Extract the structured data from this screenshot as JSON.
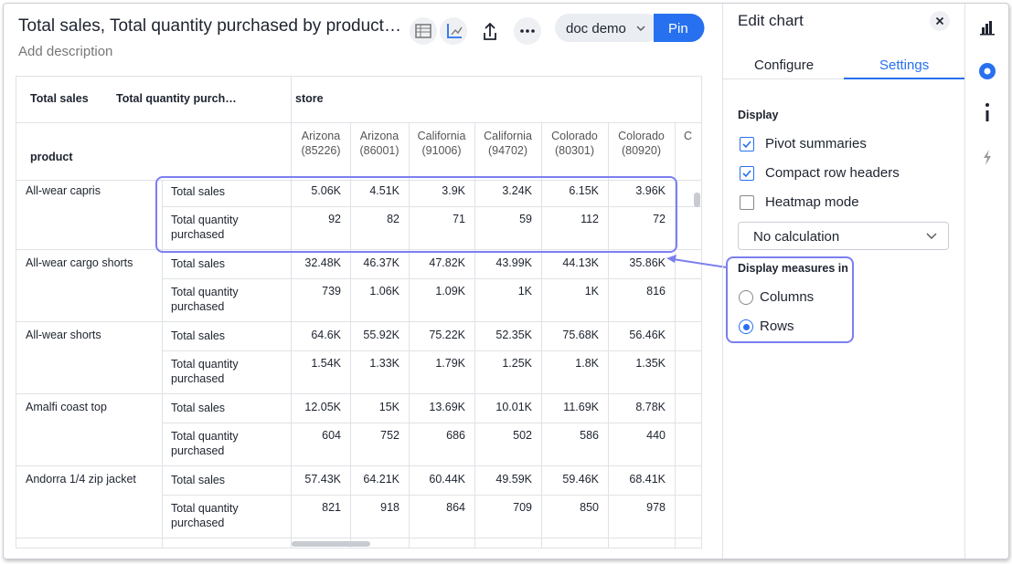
{
  "header": {
    "title": "Total sales, Total quantity purchased by product…",
    "description": "Add description",
    "worksheet": "doc demo",
    "pin": "Pin"
  },
  "table": {
    "measure_headers": [
      "Total sales",
      "Total quantity purch…"
    ],
    "column_header": "store",
    "row_header": "product",
    "columns": [
      {
        "name": "Arizona",
        "code": "(85226)"
      },
      {
        "name": "Arizona",
        "code": "(86001)"
      },
      {
        "name": "California",
        "code": "(91006)"
      },
      {
        "name": "California",
        "code": "(94702)"
      },
      {
        "name": "Colorado",
        "code": "(80301)"
      },
      {
        "name": "Colorado",
        "code": "(80920)"
      },
      {
        "name": "C"
      }
    ],
    "rows": [
      {
        "product": "All-wear capris",
        "measures": [
          {
            "label": "Total sales",
            "values": [
              "5.06K",
              "4.51K",
              "3.9K",
              "3.24K",
              "6.15K",
              "3.96K"
            ]
          },
          {
            "label": "Total quantity purchased",
            "values": [
              92,
              82,
              71,
              59,
              112,
              72
            ]
          }
        ]
      },
      {
        "product": "All-wear cargo shorts",
        "measures": [
          {
            "label": "Total sales",
            "values": [
              "32.48K",
              "46.37K",
              "47.82K",
              "43.99K",
              "44.13K",
              "35.86K"
            ]
          },
          {
            "label": "Total quantity purchased",
            "values": [
              739,
              "1.06K",
              "1.09K",
              "1K",
              "1K",
              816
            ]
          }
        ]
      },
      {
        "product": "All-wear shorts",
        "measures": [
          {
            "label": "Total sales",
            "values": [
              "64.6K",
              "55.92K",
              "75.22K",
              "52.35K",
              "75.68K",
              "56.46K"
            ]
          },
          {
            "label": "Total quantity purchased",
            "values": [
              "1.54K",
              "1.33K",
              "1.79K",
              "1.25K",
              "1.8K",
              "1.35K"
            ]
          }
        ]
      },
      {
        "product": "Amalfi coast top",
        "measures": [
          {
            "label": "Total sales",
            "values": [
              "12.05K",
              "15K",
              "13.69K",
              "10.01K",
              "11.69K",
              "8.78K"
            ]
          },
          {
            "label": "Total quantity purchased",
            "values": [
              604,
              752,
              686,
              502,
              586,
              440
            ]
          }
        ]
      },
      {
        "product": "Andorra 1/4 zip jacket",
        "measures": [
          {
            "label": "Total sales",
            "values": [
              "57.43K",
              "64.21K",
              "60.44K",
              "49.59K",
              "59.46K",
              "68.41K"
            ]
          },
          {
            "label": "Total quantity purchased",
            "values": [
              821,
              918,
              864,
              709,
              850,
              978
            ]
          }
        ]
      }
    ]
  },
  "panel": {
    "title": "Edit chart",
    "tabs": [
      "Configure",
      "Settings"
    ],
    "section": "Display",
    "checkboxes": [
      {
        "label": "Pivot summaries",
        "checked": true
      },
      {
        "label": "Compact row headers",
        "checked": true
      },
      {
        "label": "Heatmap mode",
        "checked": false
      }
    ],
    "dropdown": "No calculation",
    "measures_in": {
      "title": "Display measures in",
      "options": [
        {
          "label": "Columns",
          "selected": false
        },
        {
          "label": "Rows",
          "selected": true
        }
      ]
    }
  }
}
